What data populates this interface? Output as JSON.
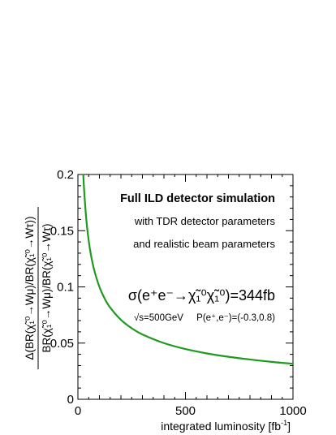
{
  "chart_data": {
    "type": "line",
    "xlabel": "integrated luminosity [fb",
    "xlabel_sup": "-1",
    "xlabel_end": "]",
    "ylabel_numerator": "Δ(BR(χ̃₁⁰→Wμ)/BR(χ̃₁⁰→Wτ))",
    "ylabel_denominator": "BR(χ̃₁⁰→Wμ)/BR(χ̃₁⁰→Wτ)",
    "xlim": [
      0,
      1000
    ],
    "ylim": [
      0,
      0.2
    ],
    "x_ticks": [
      0,
      500,
      1000
    ],
    "x_tick_labels": [
      "0",
      "500",
      "1000"
    ],
    "y_ticks": [
      0,
      0.05,
      0.1,
      0.15,
      0.2
    ],
    "y_tick_labels": [
      "0",
      "0.05",
      "0.1",
      "0.15",
      "0.2"
    ],
    "grid": false,
    "series": [
      {
        "color": "#1f9a1f",
        "x": [
          25,
          30,
          40,
          50,
          60,
          75,
          100,
          125,
          150,
          200,
          250,
          300,
          400,
          500,
          600,
          700,
          800,
          900,
          1000
        ],
        "y": [
          0.2,
          0.1826,
          0.1581,
          0.1414,
          0.1291,
          0.1155,
          0.1,
          0.0894,
          0.0816,
          0.0707,
          0.0632,
          0.0577,
          0.05,
          0.0447,
          0.0408,
          0.0378,
          0.0354,
          0.0333,
          0.0316
        ]
      }
    ],
    "annotations": {
      "line1": "Full ILD detector simulation",
      "line2": "with TDR detector parameters",
      "line3": "and realistic beam parameters",
      "xsec": "σ(e⁺e⁻→χ̃₁⁰χ̃₁⁰)=344fb",
      "energy": "√s=500GeV",
      "polarization": "P(e⁺,e⁻)=(-0.3,0.8)"
    }
  }
}
